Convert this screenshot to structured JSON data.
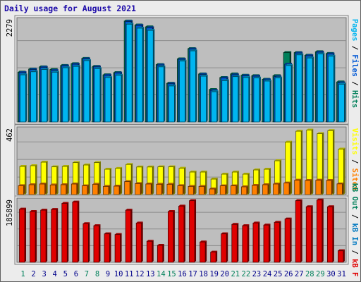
{
  "title": "Daily usage for August 2021",
  "colors": {
    "pages": "#00b5f0",
    "files": "#0058d6",
    "hits": "#00805a",
    "sites": "#ff8000",
    "visits": "#ffff00",
    "kb_in": "#0078c0",
    "kb_out": "#00805a",
    "kb_f": "#e00000",
    "plot_bg": "#bebebe",
    "frame": "#e6e6e6",
    "grid": "#8c8c8c",
    "title": "#1c0aa8",
    "day_weekday": "#00008b",
    "day_weekend": "#00805a"
  },
  "chart_data": [
    {
      "type": "bar",
      "panel": "hits-files-pages",
      "categories": [
        "1",
        "2",
        "3",
        "4",
        "5",
        "6",
        "7",
        "8",
        "9",
        "10",
        "11",
        "12",
        "13",
        "14",
        "15",
        "16",
        "17",
        "18",
        "19",
        "20",
        "21",
        "22",
        "23",
        "24",
        "25",
        "26",
        "27",
        "28",
        "29",
        "30",
        "31"
      ],
      "ymax_label": "2279",
      "ylim": [
        0,
        2279
      ],
      "grid": true,
      "series": [
        {
          "name": "Hits",
          "values": [
            1120,
            1190,
            1240,
            1180,
            1270,
            1310,
            1430,
            1250,
            1060,
            1110,
            2270,
            2180,
            2140,
            1290,
            870,
            1420,
            1650,
            1080,
            730,
            1000,
            1080,
            1050,
            1040,
            960,
            1040,
            1560,
            1560,
            1500,
            1580,
            1540,
            900
          ]
        },
        {
          "name": "Files",
          "values": [
            1110,
            1180,
            1230,
            1160,
            1260,
            1300,
            1420,
            1240,
            1050,
            1100,
            2260,
            2170,
            2120,
            1280,
            860,
            1410,
            1640,
            1070,
            710,
            990,
            1060,
            1040,
            1030,
            950,
            1020,
            1300,
            1550,
            1490,
            1570,
            1530,
            880
          ]
        },
        {
          "name": "Pages",
          "values": [
            1060,
            1130,
            1180,
            1120,
            1220,
            1250,
            1380,
            1200,
            1000,
            1050,
            2200,
            2110,
            2060,
            1240,
            810,
            1370,
            1600,
            1030,
            680,
            930,
            1020,
            1000,
            990,
            920,
            990,
            1270,
            1510,
            1440,
            1530,
            1480,
            850
          ]
        }
      ],
      "right_labels": [
        "Pages",
        "Files",
        "Hits"
      ]
    },
    {
      "type": "bar",
      "panel": "visits-sites",
      "categories": [
        "1",
        "2",
        "3",
        "4",
        "5",
        "6",
        "7",
        "8",
        "9",
        "10",
        "11",
        "12",
        "13",
        "14",
        "15",
        "16",
        "17",
        "18",
        "19",
        "20",
        "21",
        "22",
        "23",
        "24",
        "25",
        "26",
        "27",
        "28",
        "29",
        "30",
        "31"
      ],
      "ymax_label": "462",
      "ylim": [
        0,
        462
      ],
      "grid": true,
      "series": [
        {
          "name": "Visits",
          "values": [
            200,
            205,
            230,
            197,
            200,
            227,
            210,
            227,
            180,
            186,
            214,
            196,
            196,
            197,
            197,
            187,
            160,
            160,
            110,
            145,
            160,
            145,
            175,
            180,
            240,
            372,
            450,
            458,
            433,
            454,
            323
          ]
        },
        {
          "name": "Sites",
          "values": [
            63,
            70,
            75,
            68,
            70,
            75,
            62,
            73,
            58,
            60,
            92,
            78,
            75,
            73,
            73,
            63,
            58,
            58,
            40,
            62,
            62,
            55,
            65,
            70,
            75,
            82,
            102,
            100,
            102,
            100,
            76
          ]
        }
      ],
      "right_labels": [
        "Sites",
        "Visits"
      ]
    },
    {
      "type": "bar",
      "panel": "kbytes",
      "categories": [
        "1",
        "2",
        "3",
        "4",
        "5",
        "6",
        "7",
        "8",
        "9",
        "10",
        "11",
        "12",
        "13",
        "14",
        "15",
        "16",
        "17",
        "18",
        "19",
        "20",
        "21",
        "22",
        "23",
        "24",
        "25",
        "26",
        "27",
        "28",
        "29",
        "30",
        "31"
      ],
      "ymax_label": "185899",
      "ylim": [
        0,
        185899
      ],
      "grid": true,
      "series": [
        {
          "name": "kB F",
          "values": [
            157000,
            150000,
            154000,
            156000,
            174000,
            178000,
            114000,
            108000,
            84000,
            82000,
            154000,
            116000,
            62000,
            50000,
            150000,
            166000,
            182000,
            60000,
            30000,
            84000,
            112000,
            108000,
            116000,
            110000,
            118000,
            128000,
            182000,
            164000,
            184000,
            164000,
            34000
          ]
        }
      ],
      "right_labels": [
        "kB F",
        "kB In",
        "kB Out"
      ]
    }
  ],
  "day_labels": [
    "1",
    "2",
    "3",
    "4",
    "5",
    "6",
    "7",
    "8",
    "9",
    "10",
    "11",
    "12",
    "13",
    "14",
    "15",
    "16",
    "17",
    "18",
    "19",
    "20",
    "21",
    "22",
    "23",
    "24",
    "25",
    "26",
    "27",
    "28",
    "29",
    "30",
    "31"
  ],
  "weekend_days": [
    1,
    7,
    8,
    14,
    15,
    21,
    22,
    28,
    29
  ]
}
